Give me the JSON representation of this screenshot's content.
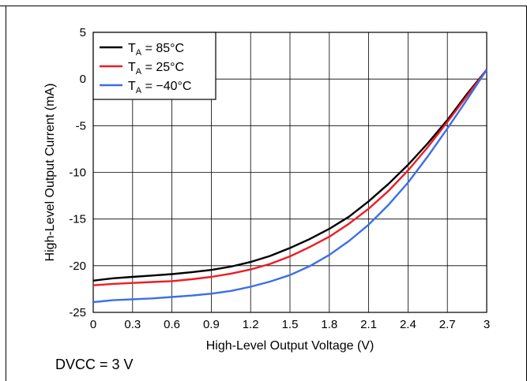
{
  "chart_data": {
    "type": "line",
    "title": "",
    "xlabel": "High-Level Output Voltage (V)",
    "ylabel": "High-Level Output Current (mA)",
    "xlim": [
      0,
      3
    ],
    "ylim": [
      -25,
      5
    ],
    "xticks": [
      "0",
      "0.3",
      "0.6",
      "0.9",
      "1.2",
      "1.5",
      "1.8",
      "2.1",
      "2.4",
      "2.7",
      "3"
    ],
    "yticks": [
      "5",
      "0",
      "-5",
      "-10",
      "-15",
      "-20",
      "-25"
    ],
    "grid": true,
    "legend_position": "top-left",
    "series": [
      {
        "name_prefix": "T",
        "name_sub": "A",
        "name_suffix": " = 85°C",
        "color": "#000000",
        "points": [
          [
            0,
            -21.6
          ],
          [
            0.15,
            -21.35
          ],
          [
            0.3,
            -21.2
          ],
          [
            0.45,
            -21.05
          ],
          [
            0.6,
            -20.9
          ],
          [
            0.75,
            -20.7
          ],
          [
            0.9,
            -20.45
          ],
          [
            1.05,
            -20.1
          ],
          [
            1.2,
            -19.6
          ],
          [
            1.35,
            -18.95
          ],
          [
            1.5,
            -18.1
          ],
          [
            1.65,
            -17.15
          ],
          [
            1.8,
            -16.05
          ],
          [
            1.95,
            -14.75
          ],
          [
            2.1,
            -13.1
          ],
          [
            2.25,
            -11.25
          ],
          [
            2.4,
            -9.2
          ],
          [
            2.55,
            -6.9
          ],
          [
            2.7,
            -4.4
          ],
          [
            2.85,
            -1.6
          ],
          [
            3,
            1.0
          ]
        ]
      },
      {
        "name_prefix": "T",
        "name_sub": "A",
        "name_suffix": " = 25°C",
        "color": "#ee1c25",
        "points": [
          [
            0,
            -22.1
          ],
          [
            0.15,
            -21.95
          ],
          [
            0.3,
            -21.85
          ],
          [
            0.45,
            -21.75
          ],
          [
            0.6,
            -21.65
          ],
          [
            0.75,
            -21.45
          ],
          [
            0.9,
            -21.2
          ],
          [
            1.05,
            -20.85
          ],
          [
            1.2,
            -20.4
          ],
          [
            1.35,
            -19.8
          ],
          [
            1.5,
            -19.0
          ],
          [
            1.65,
            -18.0
          ],
          [
            1.8,
            -16.9
          ],
          [
            1.95,
            -15.5
          ],
          [
            2.1,
            -13.9
          ],
          [
            2.25,
            -12.0
          ],
          [
            2.4,
            -9.8
          ],
          [
            2.55,
            -7.3
          ],
          [
            2.7,
            -4.6
          ],
          [
            2.85,
            -1.8
          ],
          [
            3,
            1.0
          ]
        ]
      },
      {
        "name_prefix": "T",
        "name_sub": "A",
        "name_suffix": " = −40°C",
        "color": "#3b6fe8",
        "points": [
          [
            0,
            -23.9
          ],
          [
            0.15,
            -23.7
          ],
          [
            0.3,
            -23.6
          ],
          [
            0.45,
            -23.5
          ],
          [
            0.6,
            -23.35
          ],
          [
            0.75,
            -23.2
          ],
          [
            0.9,
            -23.0
          ],
          [
            1.05,
            -22.7
          ],
          [
            1.2,
            -22.25
          ],
          [
            1.35,
            -21.7
          ],
          [
            1.5,
            -21.0
          ],
          [
            1.65,
            -20.05
          ],
          [
            1.8,
            -18.85
          ],
          [
            1.95,
            -17.35
          ],
          [
            2.1,
            -15.6
          ],
          [
            2.25,
            -13.5
          ],
          [
            2.4,
            -11.1
          ],
          [
            2.55,
            -8.3
          ],
          [
            2.7,
            -5.3
          ],
          [
            2.85,
            -2.2
          ],
          [
            3,
            1.0
          ]
        ]
      }
    ]
  },
  "note": "DVCC = 3 V"
}
